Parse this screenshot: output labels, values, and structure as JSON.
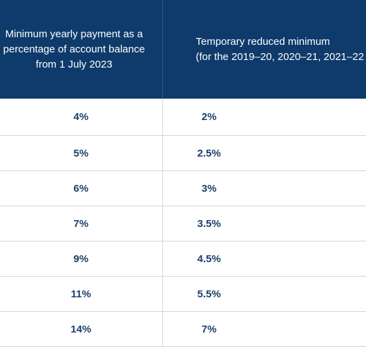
{
  "table": {
    "headers": [
      "Minimum yearly payment as a percentage of account balance from 1 July 2023",
      "Temporary reduced minimum (for the 2019–20, 2020–21, 2021–22"
    ],
    "header_lines": {
      "col1": [
        "Minimum yearly payment as a",
        "percentage of account balance",
        "from 1 July 2023"
      ],
      "col2": [
        "Temporary reduced minimum",
        "(for the 2019–20, 2020–21, 2021–22"
      ]
    },
    "rows": [
      {
        "minimum": "4%",
        "reduced": "2%"
      },
      {
        "minimum": "5%",
        "reduced": "2.5%"
      },
      {
        "minimum": "6%",
        "reduced": "3%"
      },
      {
        "minimum": "7%",
        "reduced": "3.5%"
      },
      {
        "minimum": "9%",
        "reduced": "4.5%"
      },
      {
        "minimum": "11%",
        "reduced": "5.5%"
      },
      {
        "minimum": "14%",
        "reduced": "7%"
      }
    ]
  },
  "colors": {
    "header_bg": "#0e3b6b",
    "header_text": "#ffffff",
    "cell_text": "#1f3f6a",
    "rule": "#cfd5dc"
  }
}
